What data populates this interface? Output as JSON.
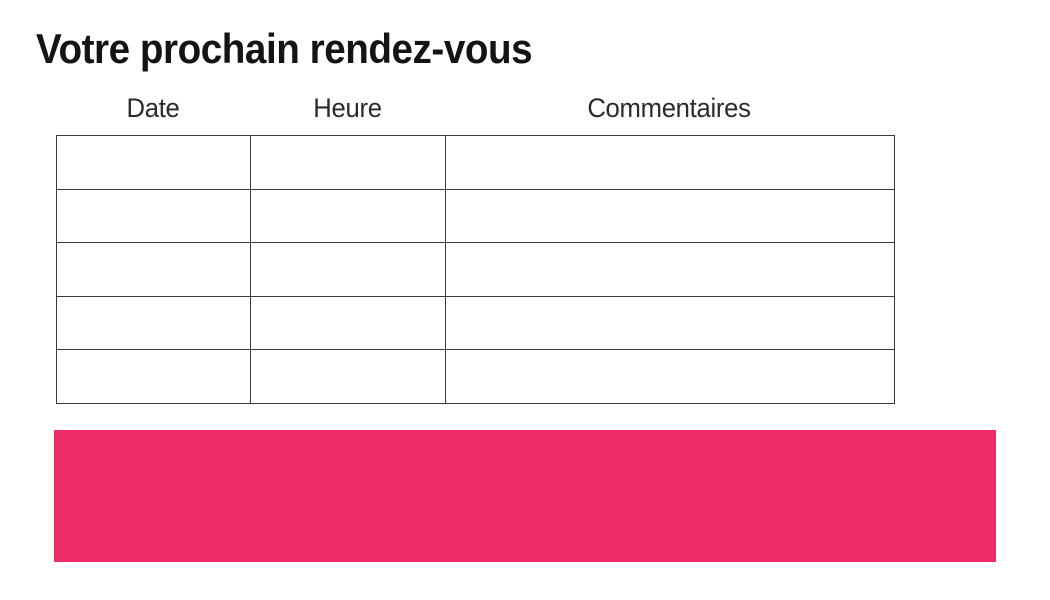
{
  "page": {
    "title": "Votre prochain rendez-vous"
  },
  "table": {
    "headers": [
      "Date",
      "Heure",
      "Commentaires"
    ],
    "rows": [
      [
        "",
        "",
        ""
      ],
      [
        "",
        "",
        ""
      ],
      [
        "",
        "",
        ""
      ],
      [
        "",
        "",
        ""
      ],
      [
        "",
        "",
        ""
      ]
    ]
  },
  "banner": {
    "text": ""
  },
  "colors": {
    "banner_background": "#ed2d67",
    "table_border": "#3b3b3b",
    "title_text": "#141414",
    "header_text": "#2b2b2b"
  }
}
